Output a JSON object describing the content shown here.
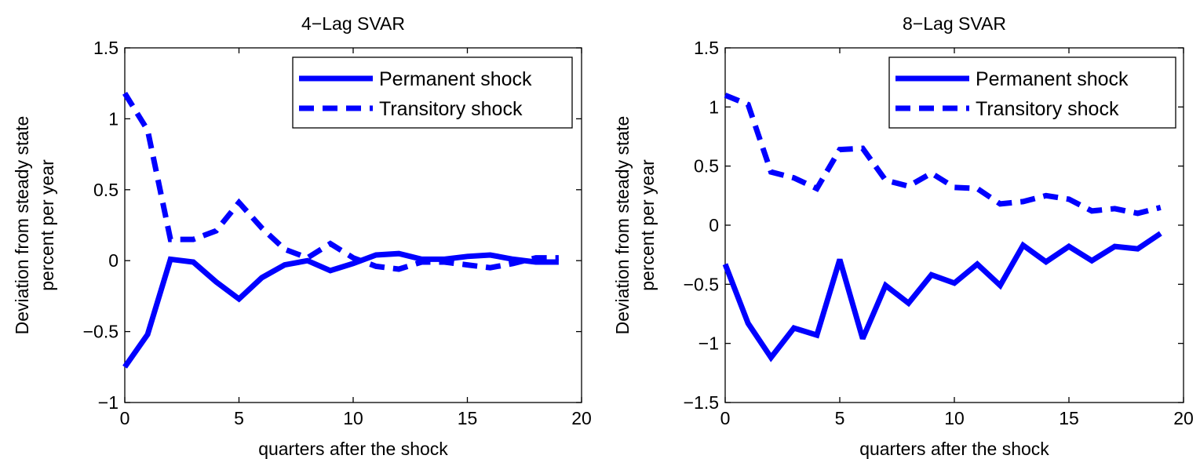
{
  "colors": {
    "series": "#0000ff",
    "axes": "#000000",
    "background": "#ffffff"
  },
  "chart_data": [
    {
      "type": "line",
      "title": "4−Lag SVAR",
      "xlabel": "quarters after the shock",
      "ylabel": [
        "Deviation from steady state",
        "percent per year"
      ],
      "xlim": [
        0,
        20
      ],
      "ylim": [
        -1,
        1.5
      ],
      "xticks": [
        0,
        5,
        10,
        15,
        20
      ],
      "xtick_labels": [
        "0",
        "5",
        "10",
        "15",
        "20"
      ],
      "yticks": [
        -1,
        -0.5,
        0,
        0.5,
        1,
        1.5
      ],
      "ytick_labels": [
        "−1",
        "−0.5",
        "0",
        "0.5",
        "1",
        "1.5"
      ],
      "grid": false,
      "legend": "top-right",
      "x": [
        0,
        1,
        2,
        3,
        4,
        5,
        6,
        7,
        8,
        9,
        10,
        11,
        12,
        13,
        14,
        15,
        16,
        17,
        18,
        19
      ],
      "series": [
        {
          "name": "Permanent shock",
          "style": "solid",
          "values": [
            -0.75,
            -0.52,
            0.01,
            -0.01,
            -0.15,
            -0.27,
            -0.12,
            -0.03,
            0.0,
            -0.07,
            -0.02,
            0.04,
            0.05,
            0.01,
            0.01,
            0.03,
            0.04,
            0.01,
            -0.01,
            -0.01
          ]
        },
        {
          "name": "Transitory shock",
          "style": "dashed",
          "values": [
            1.18,
            0.92,
            0.15,
            0.15,
            0.21,
            0.41,
            0.23,
            0.08,
            0.02,
            0.12,
            0.02,
            -0.04,
            -0.06,
            -0.01,
            -0.01,
            -0.03,
            -0.05,
            -0.02,
            0.02,
            0.02
          ]
        }
      ]
    },
    {
      "type": "line",
      "title": "8−Lag SVAR",
      "xlabel": "quarters after the shock",
      "ylabel": [
        "Deviation from steady state",
        "percent per year"
      ],
      "xlim": [
        0,
        20
      ],
      "ylim": [
        -1.5,
        1.5
      ],
      "xticks": [
        0,
        5,
        10,
        15,
        20
      ],
      "xtick_labels": [
        "0",
        "5",
        "10",
        "15",
        "20"
      ],
      "yticks": [
        -1.5,
        -1,
        -0.5,
        0,
        0.5,
        1,
        1.5
      ],
      "ytick_labels": [
        "−1.5",
        "−1",
        "−0.5",
        "0",
        "0.5",
        "1",
        "1.5"
      ],
      "grid": false,
      "legend": "top-right",
      "x": [
        0,
        1,
        2,
        3,
        4,
        5,
        6,
        7,
        8,
        9,
        10,
        11,
        12,
        13,
        14,
        15,
        16,
        17,
        18,
        19
      ],
      "series": [
        {
          "name": "Permanent shock",
          "style": "solid",
          "values": [
            -0.33,
            -0.83,
            -1.12,
            -0.87,
            -0.93,
            -0.29,
            -0.96,
            -0.51,
            -0.66,
            -0.42,
            -0.49,
            -0.33,
            -0.51,
            -0.17,
            -0.31,
            -0.18,
            -0.3,
            -0.18,
            -0.2,
            -0.07
          ]
        },
        {
          "name": "Transitory shock",
          "style": "dashed",
          "values": [
            1.1,
            1.02,
            0.45,
            0.4,
            0.31,
            0.64,
            0.65,
            0.38,
            0.33,
            0.44,
            0.32,
            0.31,
            0.18,
            0.2,
            0.25,
            0.22,
            0.12,
            0.14,
            0.1,
            0.15
          ]
        }
      ]
    }
  ]
}
